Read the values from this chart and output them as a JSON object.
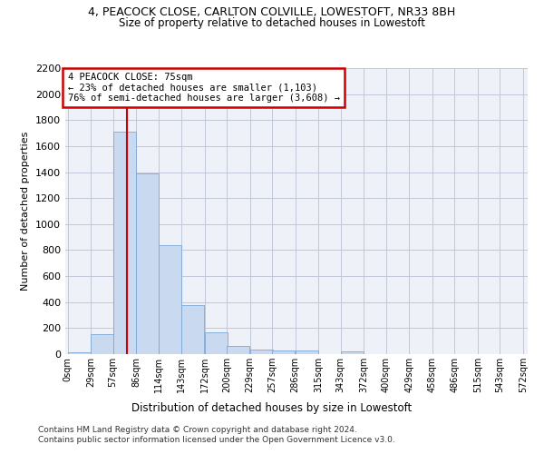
{
  "title_line1": "4, PEACOCK CLOSE, CARLTON COLVILLE, LOWESTOFT, NR33 8BH",
  "title_line2": "Size of property relative to detached houses in Lowestoft",
  "xlabel": "Distribution of detached houses by size in Lowestoft",
  "ylabel": "Number of detached properties",
  "bin_labels": [
    "0sqm",
    "29sqm",
    "57sqm",
    "86sqm",
    "114sqm",
    "143sqm",
    "172sqm",
    "200sqm",
    "229sqm",
    "257sqm",
    "286sqm",
    "315sqm",
    "343sqm",
    "372sqm",
    "400sqm",
    "429sqm",
    "458sqm",
    "486sqm",
    "515sqm",
    "543sqm",
    "572sqm"
  ],
  "bin_starts": [
    0,
    29,
    57,
    86,
    114,
    143,
    172,
    200,
    229,
    257,
    286,
    315,
    343,
    372,
    400,
    429,
    458,
    486,
    515,
    543
  ],
  "bar_values": [
    15,
    155,
    1710,
    1390,
    835,
    380,
    165,
    65,
    35,
    25,
    25,
    0,
    20,
    0,
    0,
    0,
    0,
    0,
    0,
    0
  ],
  "bar_color": "#c9d9f0",
  "bar_edgecolor": "#7aa8d4",
  "vline_x": 75,
  "vline_color": "#cc0000",
  "annotation_text": "4 PEACOCK CLOSE: 75sqm\n← 23% of detached houses are smaller (1,103)\n76% of semi-detached houses are larger (3,608) →",
  "annotation_box_edgecolor": "#cc0000",
  "ylim": [
    0,
    2200
  ],
  "yticks": [
    0,
    200,
    400,
    600,
    800,
    1000,
    1200,
    1400,
    1600,
    1800,
    2000,
    2200
  ],
  "grid_color": "#c0c8d8",
  "bg_color": "#eef2f8",
  "footer_line1": "Contains HM Land Registry data © Crown copyright and database right 2024.",
  "footer_line2": "Contains public sector information licensed under the Open Government Licence v3.0."
}
